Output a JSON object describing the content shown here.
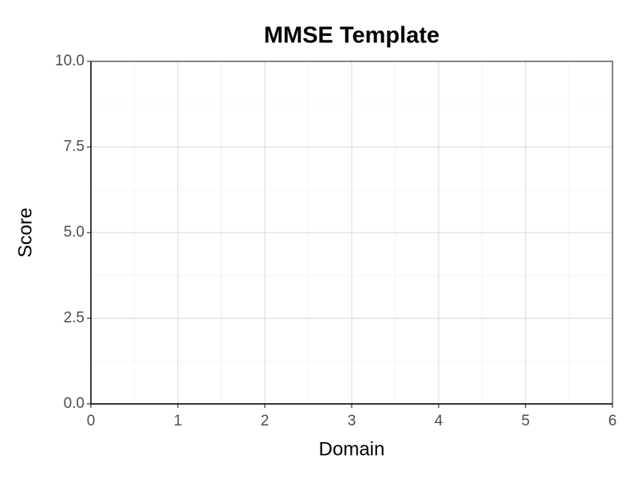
{
  "chart_data": {
    "type": "scatter",
    "title": "MMSE Template",
    "x_label": "Domain",
    "y_label": "Score",
    "xlim": [
      0,
      6
    ],
    "xticks": [
      0,
      1,
      2,
      3,
      4,
      5,
      6
    ],
    "ylim": [
      0,
      10
    ],
    "yticks": [
      {
        "value": 0,
        "label": "0.0"
      },
      2.5,
      {
        "value": 5,
        "label": "5.0"
      },
      7.5,
      {
        "value": 10,
        "label": "10.0"
      }
    ],
    "grid": true
  }
}
